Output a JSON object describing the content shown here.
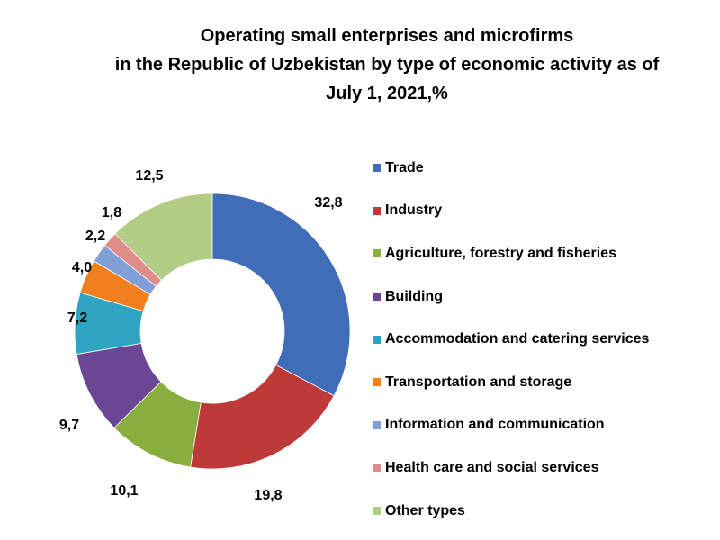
{
  "chart_data": {
    "type": "pie",
    "title_lines": [
      "Operating small enterprises and microfirms",
      "in the Republic of Uzbekistan by type of economic activity as of",
      "July 1, 2021,%"
    ],
    "donut": true,
    "legend_position": "right",
    "series": [
      {
        "name": "Trade",
        "value": 32.8,
        "label": "32,8",
        "color": "#3F6DB8"
      },
      {
        "name": "Industry",
        "value": 19.8,
        "label": "19,8",
        "color": "#BE3A38"
      },
      {
        "name": "Agriculture, forestry and fisheries",
        "value": 10.1,
        "label": "10,1",
        "color": "#8AAE3D"
      },
      {
        "name": "Building",
        "value": 9.7,
        "label": "9,7",
        "color": "#6A4694"
      },
      {
        "name": "Accommodation and catering services",
        "value": 7.2,
        "label": "7,2",
        "color": "#2FA3C2"
      },
      {
        "name": "Transportation and storage",
        "value": 4.0,
        "label": "4,0",
        "color": "#F07F1E"
      },
      {
        "name": "Information and communication",
        "value": 2.2,
        "label": "2,2",
        "color": "#7F9FD6"
      },
      {
        "name": "Health care and social services",
        "value": 1.8,
        "label": "1,8",
        "color": "#E08C8A"
      },
      {
        "name": "Other types",
        "value": 12.5,
        "label": "12,5",
        "color": "#B3CD86"
      }
    ]
  }
}
